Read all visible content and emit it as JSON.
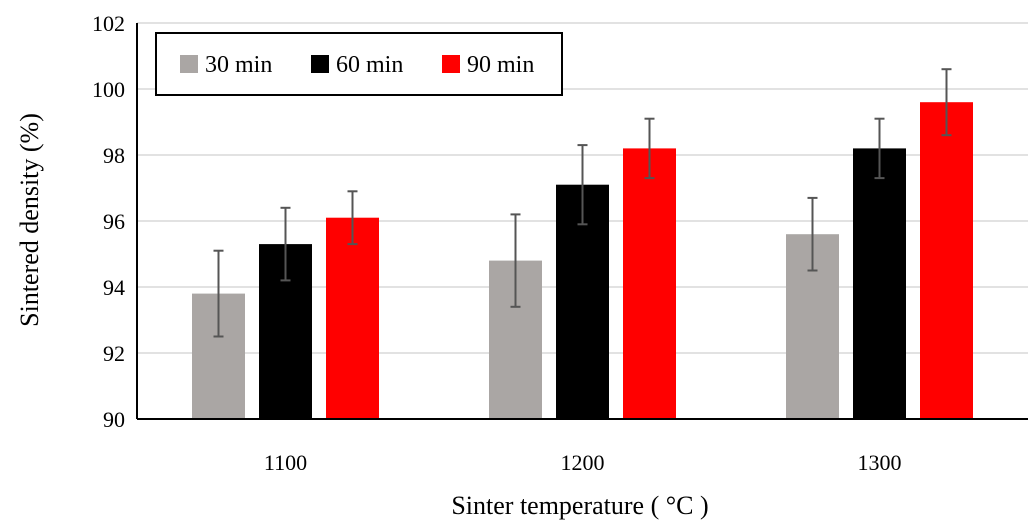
{
  "chart_data": {
    "type": "bar",
    "title": "",
    "xlabel": "Sinter temperature ( °C )",
    "ylabel": "Sintered density (%)",
    "categories": [
      "1100",
      "1200",
      "1300"
    ],
    "ylim": [
      90,
      102
    ],
    "yticks": [
      90,
      92,
      94,
      96,
      98,
      100,
      102
    ],
    "grid": true,
    "legend_position": "top-left",
    "series": [
      {
        "name": "30 min",
        "color": "#aaa6a4",
        "values": [
          93.8,
          94.8,
          95.6
        ],
        "errors": [
          1.3,
          1.4,
          1.1
        ]
      },
      {
        "name": "60 min",
        "color": "#000000",
        "values": [
          95.3,
          97.1,
          98.2
        ],
        "errors": [
          1.1,
          1.2,
          0.9
        ]
      },
      {
        "name": "90 min",
        "color": "#ff0000",
        "values": [
          96.1,
          98.2,
          99.6
        ],
        "errors": [
          0.8,
          0.9,
          1.0
        ]
      }
    ]
  }
}
